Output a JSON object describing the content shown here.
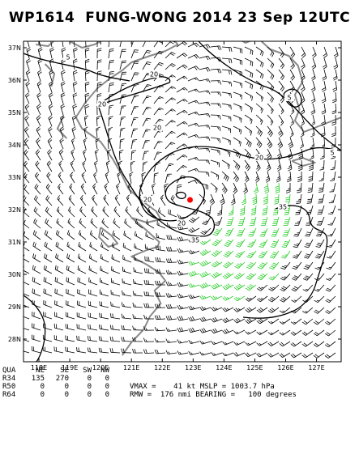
{
  "title": "WP1614  FUNG-WONG 2014 23 Sep 12UTC",
  "map": {
    "lon_range": [
      117.5,
      127.8
    ],
    "lat_range": [
      27.3,
      37.2
    ],
    "lon_labels": [
      "118E",
      "119E",
      "120E",
      "121E",
      "122E",
      "123E",
      "124E",
      "125E",
      "126E",
      "127E"
    ],
    "lat_labels": [
      "37N",
      "36N",
      "35N",
      "34N",
      "33N",
      "32N",
      "31N",
      "30N",
      "29N",
      "28N"
    ],
    "storm_center": {
      "lon": 122.9,
      "lat": 32.3
    },
    "contour_labels": [
      "5",
      "5",
      "5",
      "20",
      "20",
      "20",
      "20",
      "20",
      "20",
      "35",
      "35"
    ],
    "colors": {
      "land_outline": "#8a8a8a",
      "wind_low": "#000000",
      "wind_34kt": "#22cc22",
      "wind_50kt": "#e8a040",
      "contour": "#000000",
      "center": "#ff0000"
    }
  },
  "stats": {
    "header": [
      "QUA",
      "NE",
      "SE",
      "SW",
      "NW"
    ],
    "rows": [
      [
        "R34",
        "135",
        "270",
        "0",
        "0"
      ],
      [
        "R50",
        "0",
        "0",
        "0",
        "0"
      ],
      [
        "R64",
        "0",
        "0",
        "0",
        "0"
      ]
    ],
    "vmax": "VMAX =    41 kt MSLP = 1003.7 hPa",
    "rmw": "RMW =  176 nmi BEARING =   100 degrees"
  }
}
